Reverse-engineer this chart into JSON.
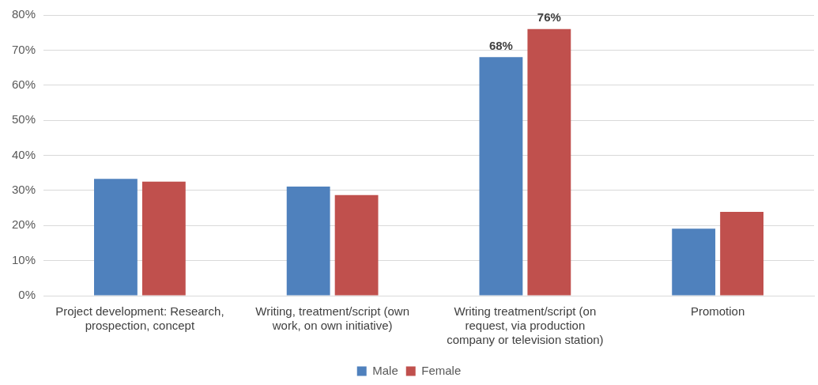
{
  "chart_data": {
    "type": "bar",
    "categories": [
      "Project development: Research, prospection, concept",
      "Writing, treatment/script (own work, on own initiative)",
      "Writing treatment/script (on request, via production company or television station)",
      "Promotion"
    ],
    "series": [
      {
        "name": "Male",
        "color": "#4f81bd",
        "values": [
          33.3,
          31.1,
          68,
          19.1
        ],
        "value_labels": [
          null,
          null,
          "68%",
          null
        ]
      },
      {
        "name": "Female",
        "color": "#c0504d",
        "values": [
          32.5,
          28.7,
          76,
          23.9
        ],
        "value_labels": [
          null,
          null,
          "76%",
          null
        ]
      }
    ],
    "ylim": [
      0,
      80
    ],
    "yticks": [
      {
        "value": 0,
        "label": "0%"
      },
      {
        "value": 10,
        "label": "10%"
      },
      {
        "value": 20,
        "label": "20%"
      },
      {
        "value": 30,
        "label": "30%"
      },
      {
        "value": 40,
        "label": "40%"
      },
      {
        "value": 50,
        "label": "50%"
      },
      {
        "value": 60,
        "label": "60%"
      },
      {
        "value": 70,
        "label": "70%"
      },
      {
        "value": 80,
        "label": "80%"
      }
    ],
    "grid": "y",
    "legend": "bottom"
  }
}
